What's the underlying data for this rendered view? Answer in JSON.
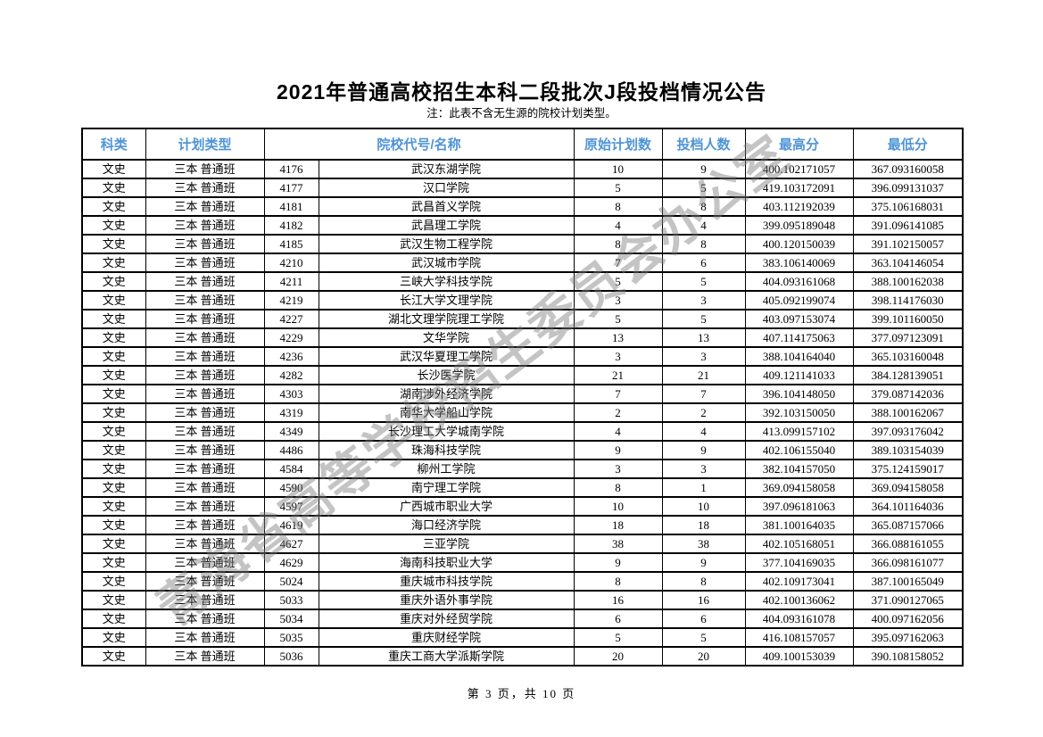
{
  "page": {
    "title": "2021年普通高校招生本科二段批次J段投档情况公告",
    "note": "注：此表不含无生源的院校计划类型。",
    "watermark": "青海省高等学校招生委员会办公室",
    "footer": "第 3 页，共 10 页",
    "header_text_color": "#4f94d6"
  },
  "table": {
    "headers": [
      "科类",
      "计划类型",
      "院校代号/名称",
      "原始计划数",
      "投档人数",
      "最高分",
      "最低分"
    ],
    "header_spans": [
      1,
      1,
      2,
      1,
      1,
      1,
      1
    ],
    "column_semantics": [
      "cell-category",
      "cell-plan-type",
      "cell-college-code",
      "cell-college-name",
      "cell-original-plan-count",
      "cell-filed-count",
      "cell-max-score",
      "cell-min-score"
    ],
    "rows": [
      [
        "文史",
        "三本 普通班",
        "4176",
        "武汉东湖学院",
        "10",
        "9",
        "400.102171057",
        "367.093160058"
      ],
      [
        "文史",
        "三本 普通班",
        "4177",
        "汉口学院",
        "5",
        "5",
        "419.103172091",
        "396.099131037"
      ],
      [
        "文史",
        "三本 普通班",
        "4181",
        "武昌首义学院",
        "8",
        "8",
        "403.112192039",
        "375.106168031"
      ],
      [
        "文史",
        "三本 普通班",
        "4182",
        "武昌理工学院",
        "4",
        "4",
        "399.095189048",
        "391.096141085"
      ],
      [
        "文史",
        "三本 普通班",
        "4185",
        "武汉生物工程学院",
        "8",
        "8",
        "400.120150039",
        "391.102150057"
      ],
      [
        "文史",
        "三本 普通班",
        "4210",
        "武汉城市学院",
        "7",
        "6",
        "383.106140069",
        "363.104146054"
      ],
      [
        "文史",
        "三本 普通班",
        "4211",
        "三峡大学科技学院",
        "5",
        "5",
        "404.093161068",
        "388.100162038"
      ],
      [
        "文史",
        "三本 普通班",
        "4219",
        "长江大学文理学院",
        "3",
        "3",
        "405.092199074",
        "398.114176030"
      ],
      [
        "文史",
        "三本 普通班",
        "4227",
        "湖北文理学院理工学院",
        "5",
        "5",
        "403.097153074",
        "399.101160050"
      ],
      [
        "文史",
        "三本 普通班",
        "4229",
        "文华学院",
        "13",
        "13",
        "407.114175063",
        "377.097123091"
      ],
      [
        "文史",
        "三本 普通班",
        "4236",
        "武汉华夏理工学院",
        "3",
        "3",
        "388.104164040",
        "365.103160048"
      ],
      [
        "文史",
        "三本 普通班",
        "4282",
        "长沙医学院",
        "21",
        "21",
        "409.121141033",
        "384.128139051"
      ],
      [
        "文史",
        "三本 普通班",
        "4303",
        "湖南涉外经济学院",
        "7",
        "7",
        "396.104148050",
        "379.087142036"
      ],
      [
        "文史",
        "三本 普通班",
        "4319",
        "南华大学船山学院",
        "2",
        "2",
        "392.103150050",
        "388.100162067"
      ],
      [
        "文史",
        "三本 普通班",
        "4349",
        "长沙理工大学城南学院",
        "4",
        "4",
        "413.099157102",
        "397.093176042"
      ],
      [
        "文史",
        "三本 普通班",
        "4486",
        "珠海科技学院",
        "9",
        "9",
        "402.106155040",
        "389.103154039"
      ],
      [
        "文史",
        "三本 普通班",
        "4584",
        "柳州工学院",
        "3",
        "3",
        "382.104157050",
        "375.124159017"
      ],
      [
        "文史",
        "三本 普通班",
        "4590",
        "南宁理工学院",
        "8",
        "1",
        "369.094158058",
        "369.094158058"
      ],
      [
        "文史",
        "三本 普通班",
        "4597",
        "广西城市职业大学",
        "10",
        "10",
        "397.096181063",
        "364.101164036"
      ],
      [
        "文史",
        "三本 普通班",
        "4619",
        "海口经济学院",
        "18",
        "18",
        "381.100164035",
        "365.087157066"
      ],
      [
        "文史",
        "三本 普通班",
        "4627",
        "三亚学院",
        "38",
        "38",
        "402.105168051",
        "366.088161055"
      ],
      [
        "文史",
        "三本 普通班",
        "4629",
        "海南科技职业大学",
        "9",
        "9",
        "377.104169035",
        "366.098161077"
      ],
      [
        "文史",
        "三本 普通班",
        "5024",
        "重庆城市科技学院",
        "8",
        "8",
        "402.109173041",
        "387.100165049"
      ],
      [
        "文史",
        "三本 普通班",
        "5033",
        "重庆外语外事学院",
        "16",
        "16",
        "402.100136062",
        "371.090127065"
      ],
      [
        "文史",
        "三本 普通班",
        "5034",
        "重庆对外经贸学院",
        "6",
        "6",
        "404.093161078",
        "400.097162056"
      ],
      [
        "文史",
        "三本 普通班",
        "5035",
        "重庆财经学院",
        "5",
        "5",
        "416.108157057",
        "395.097162063"
      ],
      [
        "文史",
        "三本 普通班",
        "5036",
        "重庆工商大学派斯学院",
        "20",
        "20",
        "409.100153039",
        "390.108158052"
      ]
    ]
  }
}
